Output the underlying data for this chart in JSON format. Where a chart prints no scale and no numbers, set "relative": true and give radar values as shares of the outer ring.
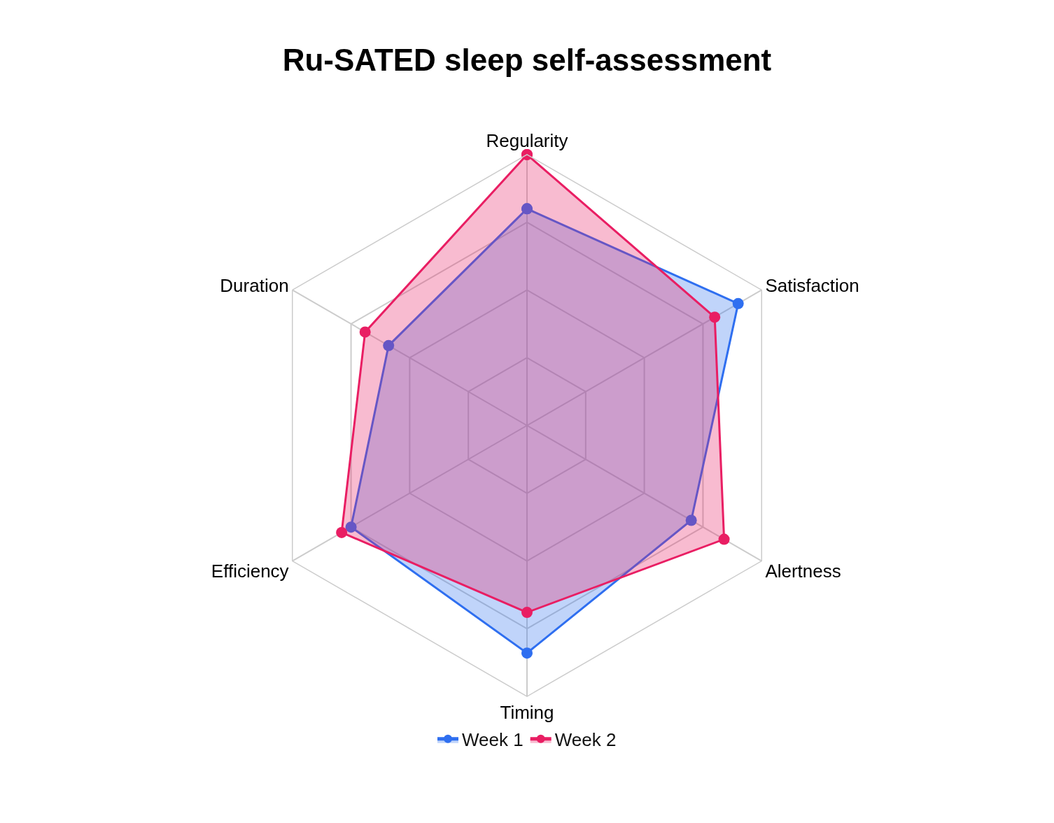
{
  "chart_data": {
    "type": "radar",
    "title": "Ru-SATED sleep self-assessment",
    "relative": true,
    "categories": [
      "Regularity",
      "Satisfaction",
      "Alertness",
      "Timing",
      "Efficiency",
      "Duration"
    ],
    "series": [
      {
        "name": "Week 1",
        "color": "#2f6ff0",
        "values": [
          0.8,
          0.9,
          0.7,
          0.84,
          0.75,
          0.59
        ]
      },
      {
        "name": "Week 2",
        "color": "#e91e63",
        "values": [
          1.0,
          0.8,
          0.84,
          0.69,
          0.79,
          0.69
        ]
      }
    ],
    "grid": true,
    "legend": "bottom",
    "marker": "circle",
    "line_style": "solid"
  }
}
